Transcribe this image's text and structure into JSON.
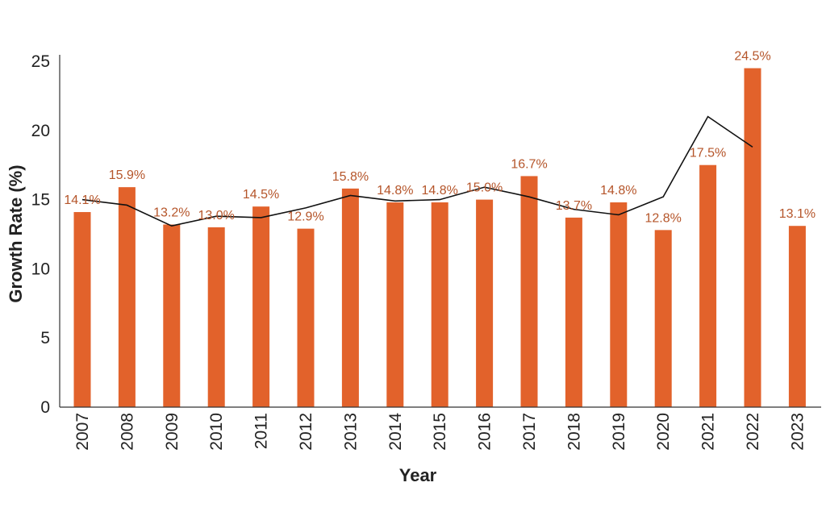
{
  "chart_data": {
    "type": "bar",
    "title": "",
    "xlabel": "Year",
    "ylabel": "Growth Rate (%)",
    "ylim": [
      0,
      25
    ],
    "yticks": [
      "0",
      "5",
      "10",
      "15",
      "20",
      "25"
    ],
    "grid": false,
    "categories": [
      "2007",
      "2008",
      "2009",
      "2010",
      "2011",
      "2012",
      "2013",
      "2014",
      "2015",
      "2016",
      "2017",
      "2018",
      "2019",
      "2020",
      "2021",
      "2022",
      "2023"
    ],
    "series": [
      {
        "name": "Growth Rate",
        "kind": "bar",
        "color": "#e2622b",
        "values": [
          14.1,
          15.9,
          13.2,
          13.0,
          14.5,
          12.9,
          15.8,
          14.8,
          14.8,
          15.0,
          16.7,
          13.7,
          14.8,
          12.8,
          17.5,
          24.5,
          13.1
        ],
        "data_labels": [
          "14.1%",
          "15.9%",
          "13.2%",
          "13.0%",
          "14.5%",
          "12.9%",
          "15.8%",
          "14.8%",
          "14.8%",
          "15.0%",
          "16.7%",
          "13.7%",
          "14.8%",
          "12.8%",
          "17.5%",
          "24.5%",
          "13.1%"
        ]
      },
      {
        "name": "Trend",
        "kind": "line",
        "color": "#111111",
        "values": [
          15.0,
          14.6,
          13.1,
          13.8,
          13.7,
          14.4,
          15.3,
          14.9,
          15.0,
          15.9,
          15.2,
          14.3,
          13.9,
          15.2,
          21.0,
          18.8,
          null
        ]
      }
    ],
    "label_color": "#b5552a",
    "axis_color": "#333333"
  }
}
